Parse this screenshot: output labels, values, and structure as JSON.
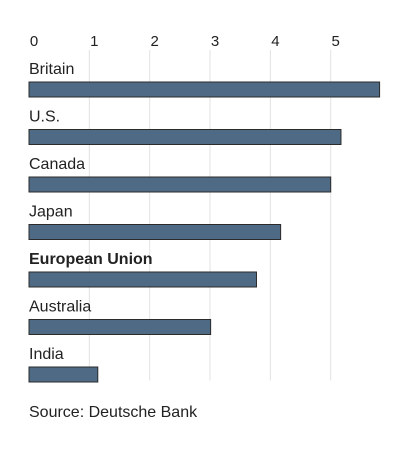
{
  "chart_data": {
    "type": "bar",
    "orientation": "horizontal",
    "categories": [
      "Britain",
      "U.S.",
      "Canada",
      "Japan",
      "European Union",
      "Australia",
      "India"
    ],
    "values": [
      5.81,
      5.17,
      5.0,
      4.17,
      3.77,
      3.01,
      1.14
    ],
    "color": "#4f6a84",
    "highlight_index": 4,
    "xlim": [
      0,
      5.85
    ],
    "xticks": [
      0,
      1,
      2,
      3,
      4,
      5
    ],
    "grid": true,
    "source": "Source: Deutsche Bank"
  }
}
